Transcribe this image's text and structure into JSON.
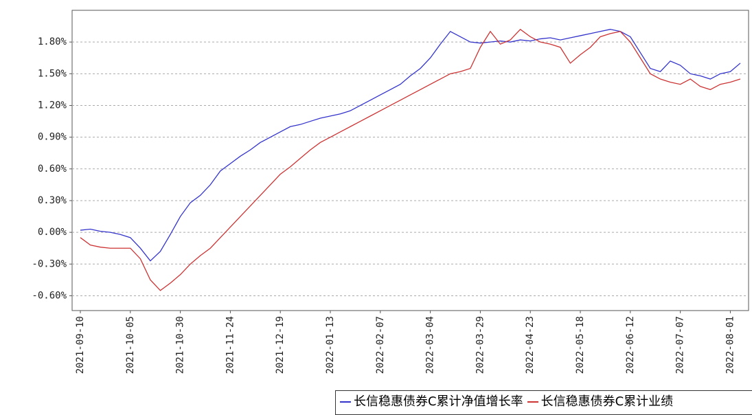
{
  "chart_data": {
    "type": "line",
    "categories": [
      "2021-09-10",
      null,
      null,
      null,
      null,
      "2021-10-05",
      null,
      null,
      null,
      null,
      "2021-10-30",
      null,
      null,
      null,
      null,
      "2021-11-24",
      null,
      null,
      null,
      null,
      "2021-12-19",
      null,
      null,
      null,
      null,
      "2022-01-13",
      null,
      null,
      null,
      null,
      "2022-02-07",
      null,
      null,
      null,
      null,
      "2022-03-04",
      null,
      null,
      null,
      null,
      "2022-03-29",
      null,
      null,
      null,
      null,
      "2022-04-23",
      null,
      null,
      null,
      null,
      "2022-05-18",
      null,
      null,
      null,
      null,
      "2022-06-12",
      null,
      null,
      null,
      null,
      "2022-07-07",
      null,
      null,
      null,
      null,
      "2022-08-01",
      null
    ],
    "series": [
      {
        "name": "长信稳惠债券C累计净值增长率",
        "color": "#3333cc",
        "values": [
          0.02,
          0.03,
          0.01,
          0.0,
          -0.02,
          -0.05,
          -0.15,
          -0.27,
          -0.18,
          -0.02,
          0.15,
          0.28,
          0.35,
          0.45,
          0.58,
          0.65,
          0.72,
          0.78,
          0.85,
          0.9,
          0.95,
          1.0,
          1.02,
          1.05,
          1.08,
          1.1,
          1.12,
          1.15,
          1.2,
          1.25,
          1.3,
          1.35,
          1.4,
          1.48,
          1.55,
          1.65,
          1.78,
          1.9,
          1.85,
          1.8,
          1.79,
          1.8,
          1.81,
          1.8,
          1.82,
          1.81,
          1.83,
          1.84,
          1.82,
          1.84,
          1.86,
          1.88,
          1.9,
          1.92,
          1.9,
          1.85,
          1.7,
          1.55,
          1.52,
          1.62,
          1.58,
          1.5,
          1.48,
          1.45,
          1.5,
          1.52,
          1.6
        ]
      },
      {
        "name": "长信稳惠债券C累计业绩",
        "color": "#cc3333",
        "values": [
          -0.05,
          -0.12,
          -0.14,
          -0.15,
          -0.15,
          -0.15,
          -0.25,
          -0.45,
          -0.55,
          -0.48,
          -0.4,
          -0.3,
          -0.22,
          -0.15,
          -0.05,
          0.05,
          0.15,
          0.25,
          0.35,
          0.45,
          0.55,
          0.62,
          0.7,
          0.78,
          0.85,
          0.9,
          0.95,
          1.0,
          1.05,
          1.1,
          1.15,
          1.2,
          1.25,
          1.3,
          1.35,
          1.4,
          1.45,
          1.5,
          1.52,
          1.55,
          1.75,
          1.9,
          1.78,
          1.82,
          1.92,
          1.85,
          1.8,
          1.78,
          1.75,
          1.6,
          1.68,
          1.75,
          1.85,
          1.88,
          1.9,
          1.8,
          1.65,
          1.5,
          1.45,
          1.42,
          1.4,
          1.45,
          1.38,
          1.35,
          1.4,
          1.42,
          1.45
        ]
      }
    ],
    "ylim": [
      -0.74,
      2.1
    ],
    "yticks": [
      {
        "value": -0.6,
        "label": "-0.60%"
      },
      {
        "value": -0.3,
        "label": "-0.30%"
      },
      {
        "value": 0,
        "label": "0.00%"
      },
      {
        "value": 0.3,
        "label": "0.30%"
      },
      {
        "value": 0.6,
        "label": "0.60%"
      },
      {
        "value": 0.9,
        "label": "0.90%"
      },
      {
        "value": 1.2,
        "label": "1.20%"
      },
      {
        "value": 1.5,
        "label": "1.50%"
      },
      {
        "value": 1.8,
        "label": "1.80%"
      }
    ],
    "grid": true
  }
}
